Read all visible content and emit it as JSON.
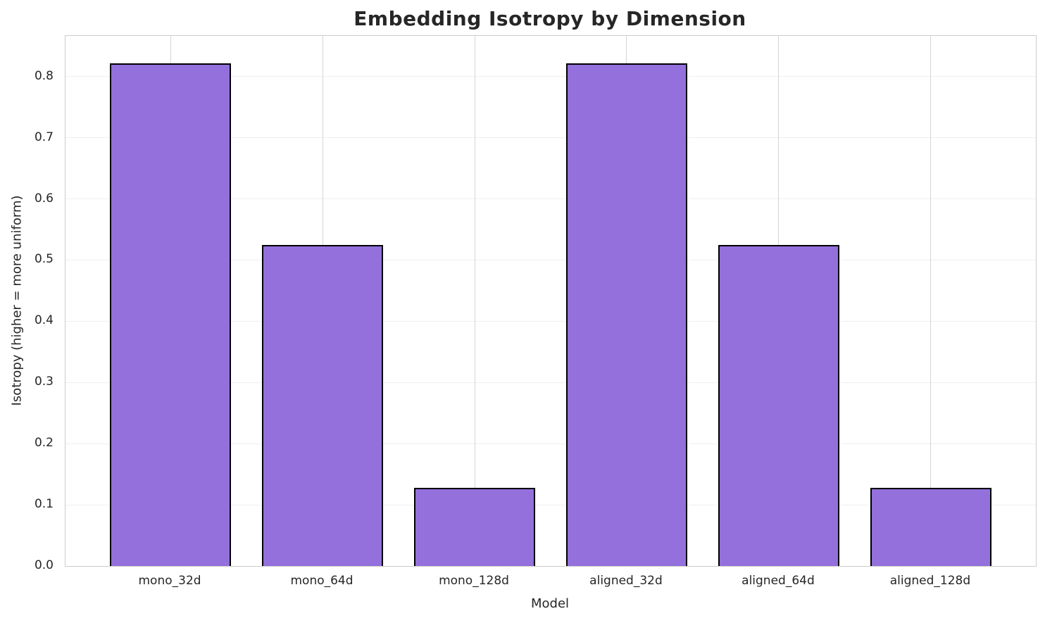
{
  "chart_data": {
    "type": "bar",
    "title": "Embedding Isotropy by Dimension",
    "xlabel": "Model",
    "ylabel": "Isotropy (higher = more uniform)",
    "categories": [
      "mono_32d",
      "mono_64d",
      "mono_128d",
      "aligned_32d",
      "aligned_64d",
      "aligned_128d"
    ],
    "values": [
      0.822,
      0.525,
      0.128,
      0.822,
      0.525,
      0.128
    ],
    "ylim": [
      0,
      0.8665
    ],
    "ytick_values": [
      0.0,
      0.1,
      0.2,
      0.3,
      0.4,
      0.5,
      0.6,
      0.7,
      0.8
    ],
    "ytick_labels": [
      "0.0",
      "0.1",
      "0.2",
      "0.3",
      "0.4",
      "0.5",
      "0.6",
      "0.7",
      "0.8"
    ],
    "grid": true,
    "legend": false,
    "bar_color": "#9370DB",
    "bar_edge_color": "#000000",
    "bar_width_fraction": 0.8
  }
}
